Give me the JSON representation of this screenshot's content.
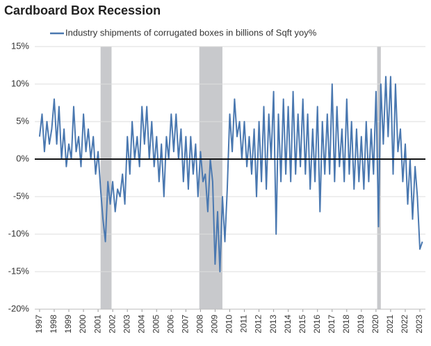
{
  "chart_data": {
    "type": "line",
    "title": "Cardboard Box Recession",
    "xlim": [
      1996.67,
      2023.38
    ],
    "ylim": [
      -20,
      15
    ],
    "yticks": [
      {
        "value": 15,
        "label": "15%"
      },
      {
        "value": 10,
        "label": "10%"
      },
      {
        "value": 5,
        "label": "5%"
      },
      {
        "value": 0,
        "label": "0%"
      },
      {
        "value": -5,
        "label": "-5%"
      },
      {
        "value": -10,
        "label": "-10%"
      },
      {
        "value": -15,
        "label": "-15%"
      },
      {
        "value": -20,
        "label": "-20%"
      }
    ],
    "xticks": [
      1997,
      1998,
      1999,
      2000,
      2001,
      2002,
      2003,
      2004,
      2005,
      2006,
      2007,
      2008,
      2009,
      2010,
      2011,
      2012,
      2013,
      2014,
      2015,
      2016,
      2017,
      2018,
      2019,
      2020,
      2021,
      2022,
      2023
    ],
    "grid": true,
    "recessions": [
      [
        2001.17,
        2001.92
      ],
      [
        2007.92,
        2009.5
      ],
      [
        2020.08,
        2020.33
      ]
    ],
    "recession_color": "#c8c9cc",
    "x": [
      1997,
      1997.17,
      1997.33,
      1997.5,
      1997.67,
      1997.83,
      1998,
      1998.17,
      1998.33,
      1998.5,
      1998.67,
      1998.83,
      1999,
      1999.17,
      1999.33,
      1999.5,
      1999.67,
      1999.83,
      2000,
      2000.17,
      2000.33,
      2000.5,
      2000.67,
      2000.83,
      2001,
      2001.17,
      2001.33,
      2001.5,
      2001.67,
      2001.83,
      2002,
      2002.17,
      2002.33,
      2002.5,
      2002.67,
      2002.83,
      2003,
      2003.17,
      2003.33,
      2003.5,
      2003.67,
      2003.83,
      2004,
      2004.17,
      2004.33,
      2004.5,
      2004.67,
      2004.83,
      2005,
      2005.17,
      2005.33,
      2005.5,
      2005.67,
      2005.83,
      2006,
      2006.17,
      2006.33,
      2006.5,
      2006.67,
      2006.83,
      2007,
      2007.17,
      2007.33,
      2007.5,
      2007.67,
      2007.83,
      2008,
      2008.17,
      2008.33,
      2008.5,
      2008.67,
      2008.83,
      2009,
      2009.17,
      2009.33,
      2009.5,
      2009.67,
      2009.83,
      2010,
      2010.17,
      2010.33,
      2010.5,
      2010.67,
      2010.83,
      2011,
      2011.17,
      2011.33,
      2011.5,
      2011.67,
      2011.83,
      2012,
      2012.17,
      2012.33,
      2012.5,
      2012.67,
      2012.83,
      2013,
      2013.17,
      2013.33,
      2013.5,
      2013.67,
      2013.83,
      2014,
      2014.17,
      2014.33,
      2014.5,
      2014.67,
      2014.83,
      2015,
      2015.17,
      2015.33,
      2015.5,
      2015.67,
      2015.83,
      2016,
      2016.17,
      2016.33,
      2016.5,
      2016.67,
      2016.83,
      2017,
      2017.17,
      2017.33,
      2017.5,
      2017.67,
      2017.83,
      2018,
      2018.17,
      2018.33,
      2018.5,
      2018.67,
      2018.83,
      2019,
      2019.17,
      2019.33,
      2019.5,
      2019.67,
      2019.83,
      2020,
      2020.17,
      2020.33,
      2020.5,
      2020.67,
      2020.83,
      2021,
      2021.17,
      2021.33,
      2021.5,
      2021.67,
      2021.83,
      2022,
      2022.17,
      2022.33,
      2022.5,
      2022.67,
      2022.83,
      2023,
      2023.17
    ],
    "series": [
      {
        "name": "Industry shipments of corrugated boxes in billions of Sqft yoy%",
        "color": "#4a78b0",
        "values": [
          3,
          6,
          1,
          5,
          2,
          4,
          8,
          2,
          7,
          0,
          4,
          -1,
          2,
          0,
          7,
          1,
          3,
          -1,
          6,
          1,
          4,
          0,
          3,
          -2,
          1,
          -4,
          -8,
          -11,
          -3,
          -6,
          -3,
          -7,
          -4,
          -5,
          -2,
          -6,
          3,
          -2,
          5,
          0,
          3,
          -1,
          7,
          2,
          7,
          0,
          5,
          -1,
          3,
          -3,
          2,
          -5,
          3,
          0,
          6,
          1,
          6,
          0,
          4,
          -3,
          3,
          -4,
          3,
          -2,
          2,
          -5,
          1,
          -3,
          -2,
          -7,
          0,
          -3,
          -14,
          -7,
          -15,
          -5,
          -11,
          -4,
          6,
          1,
          8,
          3,
          5,
          0,
          5,
          -1,
          3,
          -2,
          4,
          -5,
          5,
          -3,
          7,
          -4,
          6,
          0,
          9,
          -10,
          6,
          -3,
          8,
          -2,
          7,
          -3,
          9,
          -2,
          6,
          -1,
          8,
          -2,
          6,
          -4,
          4,
          -3,
          7,
          -7,
          5,
          -2,
          6,
          -2,
          10,
          -3,
          7,
          -1,
          4,
          -3,
          8,
          -2,
          5,
          -4,
          4,
          -3,
          3,
          -4,
          5,
          -3,
          4,
          -2,
          9,
          -9,
          10,
          2,
          11,
          3,
          11,
          -2,
          10,
          1,
          4,
          -3,
          2,
          -6,
          0,
          -8,
          -1,
          -5,
          -12,
          -11
        ]
      }
    ]
  }
}
